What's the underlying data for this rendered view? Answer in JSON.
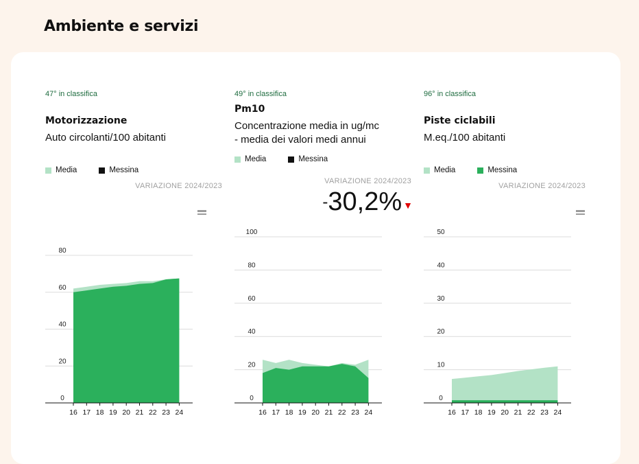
{
  "section_title": "Ambiente e servizi",
  "colors": {
    "media": "#b3e2c6",
    "messina_green": "#2bb05c",
    "messina_black": "#111111",
    "down_arrow": "#e00000"
  },
  "panels": [
    {
      "rank": "47° in classifica",
      "title": "Motorizzazione",
      "subtitle_lines": [
        "Auto circolanti/100 abitanti"
      ],
      "legend": [
        {
          "label": "Media",
          "color": "#b3e2c6"
        },
        {
          "label": "Messina",
          "color": "#111111"
        }
      ],
      "variation_label": "VARIAZIONE 2024/2023",
      "variation_icon": "equal-icon"
    },
    {
      "rank": "49° in classifica",
      "title": "Pm10",
      "subtitle_lines": [
        "Concentrazione media in ug/mc",
        "- media dei valori medi annui"
      ],
      "legend": [
        {
          "label": "Media",
          "color": "#b3e2c6"
        },
        {
          "label": "Messina",
          "color": "#111111"
        }
      ],
      "variation_label": "VARIAZIONE 2024/2023",
      "variation_sign": "-",
      "variation_value": "30,2%",
      "variation_icon": "down-triangle-icon"
    },
    {
      "rank": "96° in classifica",
      "title": "Piste ciclabili",
      "subtitle_lines": [
        "M.eq./100 abitanti"
      ],
      "legend": [
        {
          "label": "Media",
          "color": "#b3e2c6"
        },
        {
          "label": "Messina",
          "color": "#2bb05c"
        }
      ],
      "variation_label": "VARIAZIONE 2024/2023",
      "variation_icon": "equal-icon"
    }
  ],
  "chart_data": [
    {
      "type": "area",
      "x": [
        "16",
        "17",
        "18",
        "19",
        "20",
        "21",
        "22",
        "23",
        "24"
      ],
      "series": [
        {
          "name": "Media",
          "values": [
            62,
            63,
            64,
            64.5,
            65,
            66,
            66,
            67,
            67.5
          ]
        },
        {
          "name": "Messina",
          "values": [
            60,
            61,
            62,
            63,
            63.5,
            64.5,
            65,
            67,
            67.5
          ]
        }
      ],
      "yticks": [
        0,
        20,
        40,
        60,
        80
      ],
      "ylim": [
        0,
        80
      ],
      "grid": true
    },
    {
      "type": "area",
      "x": [
        "16",
        "17",
        "18",
        "19",
        "20",
        "21",
        "22",
        "23",
        "24"
      ],
      "series": [
        {
          "name": "Media",
          "values": [
            26,
            24,
            26,
            24,
            23,
            22,
            24,
            23,
            26
          ]
        },
        {
          "name": "Messina",
          "values": [
            18,
            21,
            20,
            22,
            22,
            22,
            23.5,
            22,
            15
          ]
        }
      ],
      "yticks": [
        0,
        20,
        40,
        60,
        80,
        100
      ],
      "ylim": [
        0,
        100
      ],
      "grid": true
    },
    {
      "type": "area",
      "x": [
        "16",
        "17",
        "18",
        "19",
        "20",
        "21",
        "22",
        "23",
        "24"
      ],
      "series": [
        {
          "name": "Media",
          "values": [
            7.2,
            7.6,
            8.0,
            8.4,
            9.0,
            9.6,
            10.1,
            10.6,
            11.0
          ]
        },
        {
          "name": "Messina",
          "values": [
            0.8,
            0.8,
            0.8,
            0.8,
            0.8,
            0.8,
            0.8,
            0.8,
            0.8
          ]
        }
      ],
      "yticks": [
        0,
        10,
        20,
        30,
        40,
        50
      ],
      "ylim": [
        0,
        50
      ],
      "grid": true
    }
  ]
}
